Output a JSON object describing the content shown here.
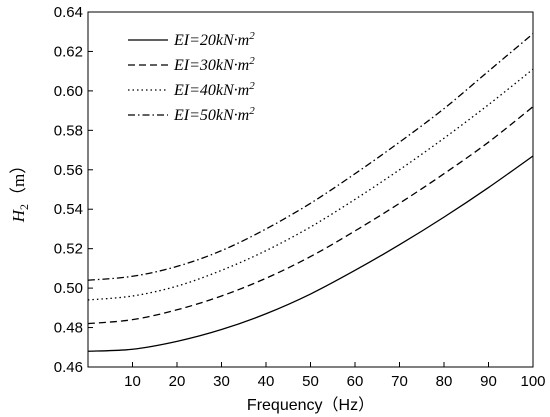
{
  "chart_data": {
    "type": "line",
    "xlabel": "Frequency（Hz）",
    "ylabel": "H2（m）",
    "ylabel_main": "H",
    "ylabel_sub": "2",
    "ylabel_unit": "（m）",
    "xlim": [
      0,
      100
    ],
    "ylim": [
      0.46,
      0.64
    ],
    "x_ticks": [
      10,
      20,
      30,
      40,
      50,
      60,
      70,
      80,
      90,
      100
    ],
    "y_ticks": [
      0.46,
      0.48,
      0.5,
      0.52,
      0.54,
      0.56,
      0.58,
      0.6,
      0.62,
      0.64
    ],
    "y_tick_labels": [
      "0.46",
      "0.48",
      "0.50",
      "0.52",
      "0.54",
      "0.56",
      "0.58",
      "0.60",
      "0.62",
      "0.64"
    ],
    "grid": false,
    "legend_position": "top-left",
    "x": [
      0,
      10,
      20,
      30,
      40,
      50,
      60,
      70,
      80,
      90,
      100
    ],
    "series": [
      {
        "name": "EI=20kN·m2",
        "dash": "solid",
        "values": [
          0.468,
          0.469,
          0.473,
          0.479,
          0.487,
          0.497,
          0.509,
          0.522,
          0.536,
          0.551,
          0.567
        ]
      },
      {
        "name": "EI=30kN·m2",
        "dash": "dashed",
        "values": [
          0.482,
          0.484,
          0.489,
          0.496,
          0.505,
          0.516,
          0.529,
          0.543,
          0.558,
          0.574,
          0.592
        ]
      },
      {
        "name": "EI=40kN·m2",
        "dash": "dotted",
        "values": [
          0.494,
          0.496,
          0.501,
          0.509,
          0.519,
          0.531,
          0.545,
          0.56,
          0.576,
          0.593,
          0.611
        ]
      },
      {
        "name": "EI=50kN·m2",
        "dash": "dashdot",
        "values": [
          0.504,
          0.506,
          0.511,
          0.519,
          0.53,
          0.543,
          0.558,
          0.574,
          0.591,
          0.61,
          0.629
        ]
      }
    ]
  }
}
